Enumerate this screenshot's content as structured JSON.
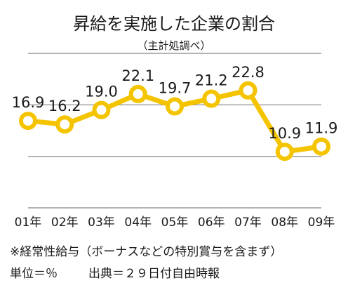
{
  "chart_data": {
    "type": "line",
    "title": "昇給を実施した企業の割合",
    "subtitle": "（主計処調べ）",
    "categories": [
      "01年",
      "02年",
      "03年",
      "04年",
      "05年",
      "06年",
      "07年",
      "08年",
      "09年"
    ],
    "values": [
      16.9,
      16.2,
      19.0,
      22.1,
      19.7,
      21.2,
      22.8,
      10.9,
      11.9
    ],
    "value_labels": [
      "16.9",
      "16.2",
      "19.0",
      "22.1",
      "19.7",
      "21.2",
      "22.8",
      "10.9",
      "11.9"
    ],
    "ylim": [
      0,
      30
    ],
    "grid": true,
    "line_color": "#f5c400",
    "grid_color": "#9a9a9a"
  },
  "footer": {
    "note": "※経常性給与（ボーナスなどの特別賞与を含まず）",
    "unit": "単位＝％",
    "source": "出典＝２９日付自由時報"
  }
}
